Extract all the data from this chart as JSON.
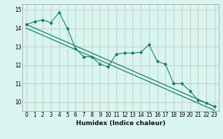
{
  "xlabel": "Humidex (Indice chaleur)",
  "xlim": [
    -0.5,
    23.5
  ],
  "ylim": [
    9.5,
    15.3
  ],
  "yticks": [
    10,
    11,
    12,
    13,
    14,
    15
  ],
  "xticks": [
    0,
    1,
    2,
    3,
    4,
    5,
    6,
    7,
    8,
    9,
    10,
    11,
    12,
    13,
    14,
    15,
    16,
    17,
    18,
    19,
    20,
    21,
    22,
    23
  ],
  "bg_color": "#d8f5f0",
  "grid_color": "#c8c8be",
  "line_color": "#1a7a6e",
  "data_x": [
    0,
    1,
    2,
    3,
    4,
    5,
    6,
    7,
    8,
    9,
    10,
    11,
    12,
    13,
    14,
    15,
    16,
    17,
    18,
    19,
    20,
    21,
    22,
    23
  ],
  "data_y": [
    14.2,
    14.35,
    14.45,
    14.3,
    14.85,
    14.0,
    12.9,
    12.45,
    12.45,
    12.05,
    11.9,
    12.6,
    12.65,
    12.65,
    12.7,
    13.1,
    12.2,
    12.05,
    11.0,
    11.0,
    10.6,
    10.1,
    9.95,
    9.75
  ],
  "trend1_x0": 0,
  "trend1_y0": 14.2,
  "trend1_x1": 23,
  "trend1_y1": 9.75,
  "trend2_x0": 0,
  "trend2_y0": 14.0,
  "trend2_x1": 23,
  "trend2_y1": 9.55
}
